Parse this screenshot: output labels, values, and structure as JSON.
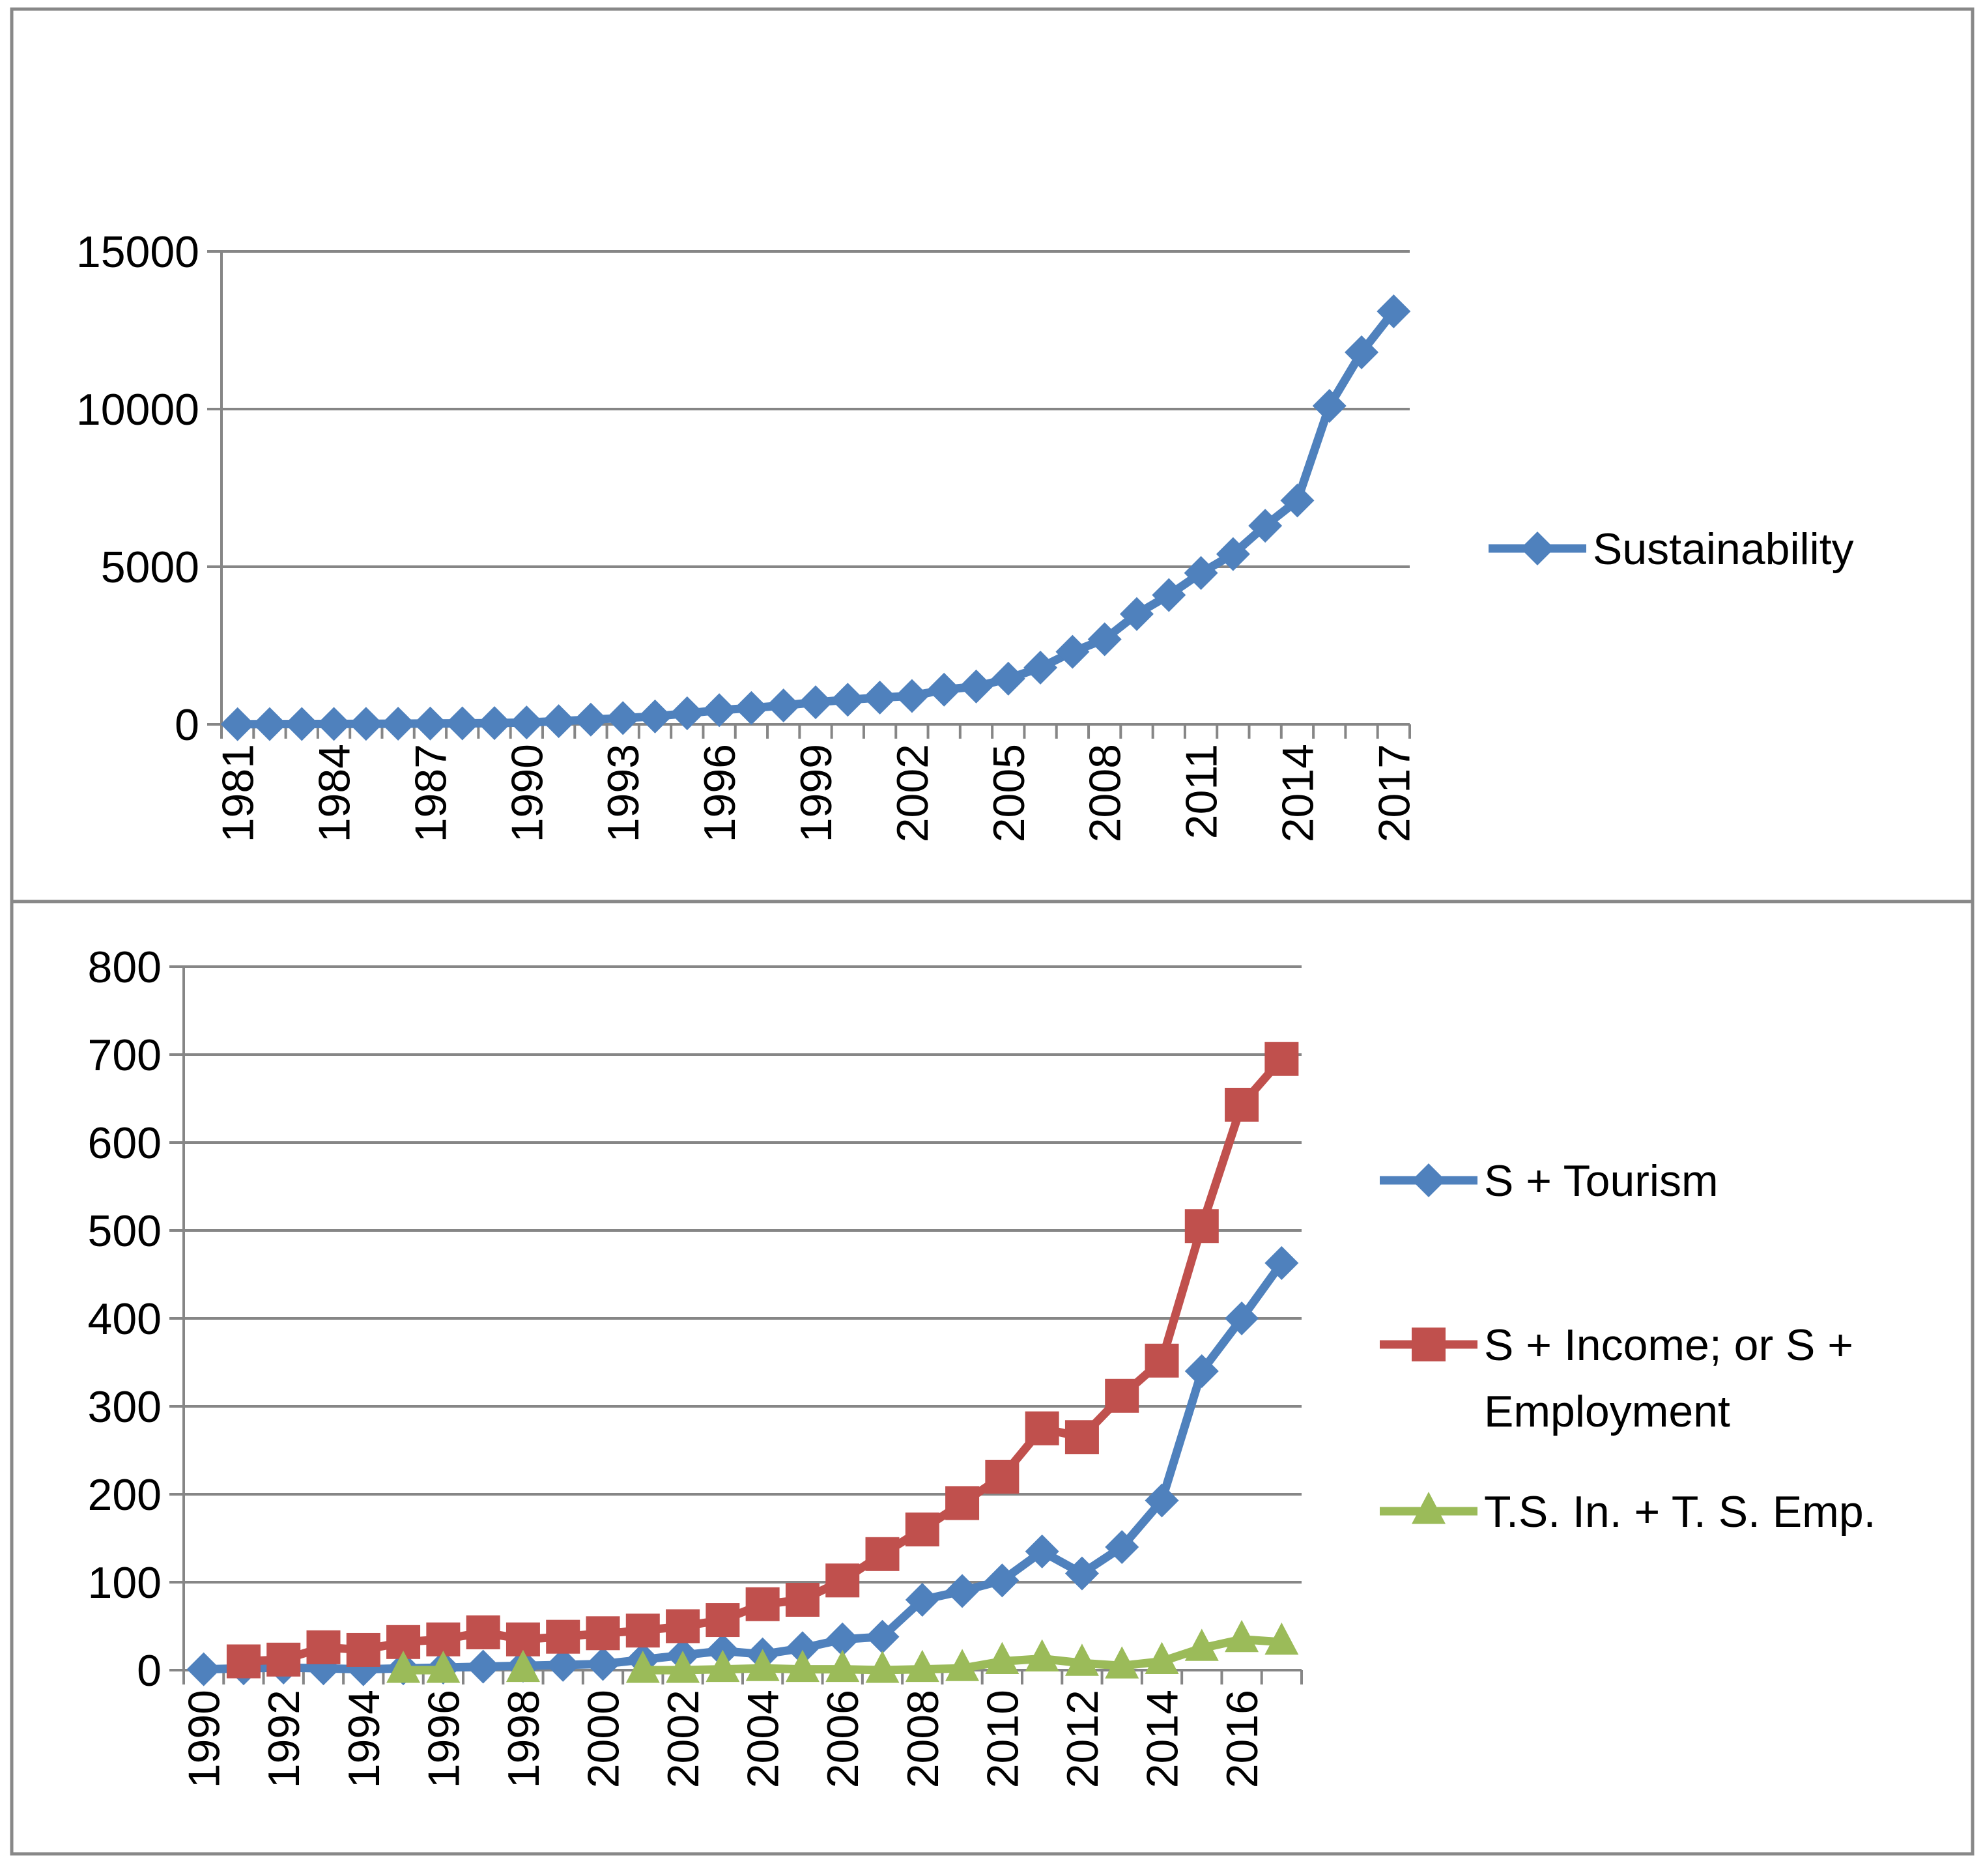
{
  "chart_data": [
    {
      "type": "line",
      "title": "",
      "xlabel": "",
      "ylabel": "",
      "ylim": [
        0,
        15000
      ],
      "yticks": [
        "0",
        "5000",
        "10000",
        "15000"
      ],
      "x": [
        1981,
        1982,
        1983,
        1984,
        1985,
        1986,
        1987,
        1988,
        1989,
        1990,
        1991,
        1992,
        1993,
        1994,
        1995,
        1996,
        1997,
        1998,
        1999,
        2000,
        2001,
        2002,
        2003,
        2004,
        2005,
        2006,
        2007,
        2008,
        2009,
        2010,
        2011,
        2012,
        2013,
        2014,
        2015,
        2016,
        2017
      ],
      "xtick_labels": [
        "1981",
        "1984",
        "1987",
        "1990",
        "1993",
        "1996",
        "1999",
        "2002",
        "2005",
        "2008",
        "2011",
        "2014",
        "2017"
      ],
      "legend_position": "right",
      "series": [
        {
          "name": "Sustainability",
          "color": "#4F81BD",
          "marker": "diamond",
          "values": [
            5,
            8,
            10,
            12,
            15,
            20,
            25,
            30,
            40,
            60,
            100,
            150,
            200,
            250,
            350,
            450,
            520,
            600,
            700,
            780,
            850,
            900,
            1100,
            1200,
            1450,
            1800,
            2300,
            2700,
            3500,
            4100,
            4800,
            5400,
            6300,
            7100,
            10100,
            11800,
            13100
          ]
        }
      ]
    },
    {
      "type": "line",
      "title": "",
      "xlabel": "",
      "ylabel": "",
      "ylim": [
        0,
        800
      ],
      "yticks": [
        "0",
        "100",
        "200",
        "300",
        "400",
        "500",
        "600",
        "700",
        "800"
      ],
      "x": [
        1990,
        1991,
        1992,
        1993,
        1994,
        1995,
        1996,
        1997,
        1998,
        1999,
        2000,
        2001,
        2002,
        2003,
        2004,
        2005,
        2006,
        2007,
        2008,
        2009,
        2010,
        2011,
        2012,
        2013,
        2014,
        2015,
        2016,
        2017
      ],
      "xtick_labels": [
        "1990",
        "1992",
        "1994",
        "1996",
        "1998",
        "2000",
        "2002",
        "2004",
        "2006",
        "2008",
        "2010",
        "2012",
        "2014",
        "2016"
      ],
      "legend_position": "right",
      "series": [
        {
          "name": "S + Tourism",
          "color": "#4F81BD",
          "marker": "diamond",
          "values": [
            1,
            2,
            3,
            2,
            1,
            2,
            3,
            4,
            5,
            6,
            7,
            12,
            17,
            22,
            18,
            25,
            35,
            38,
            80,
            90,
            102,
            135,
            110,
            140,
            193,
            340,
            400,
            463
          ]
        },
        {
          "name": "S + Income; or S + Employment",
          "label_lines": [
            "S + Income; or S +",
            "Employment"
          ],
          "color": "#C0504D",
          "marker": "square",
          "values": [
            null,
            10,
            12,
            26,
            23,
            32,
            35,
            43,
            35,
            38,
            42,
            45,
            50,
            57,
            75,
            80,
            102,
            132,
            160,
            190,
            220,
            275,
            265,
            312,
            352,
            505,
            643,
            695
          ]
        },
        {
          "name": "T.S. In. + T. S. Emp.",
          "color": "#9BBB59",
          "marker": "triangle",
          "values": [
            null,
            null,
            null,
            null,
            null,
            0,
            0,
            null,
            1,
            null,
            null,
            0,
            0,
            1,
            2,
            1,
            1,
            0,
            1,
            2,
            10,
            13,
            8,
            5,
            10,
            25,
            35,
            32
          ]
        }
      ]
    }
  ]
}
